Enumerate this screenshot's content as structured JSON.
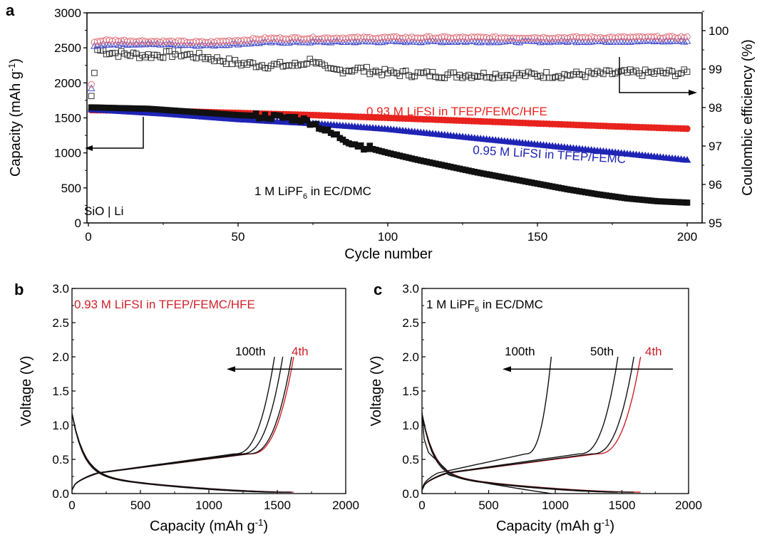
{
  "chart_data": [
    {
      "panel": "a",
      "type": "scatter",
      "xlabel": "Cycle number",
      "ylabel": "Capacity (mAh g-1)",
      "ylabel_right": "Coulombic efficiency (%)",
      "xlim": [
        -5,
        208
      ],
      "ylim": [
        0,
        3000
      ],
      "ylim_right": [
        95,
        100.5
      ],
      "xticks": [
        "0",
        "50",
        "100",
        "150",
        "200"
      ],
      "yticks": [
        "0",
        "500",
        "1000",
        "1500",
        "2000",
        "2500",
        "3000"
      ],
      "yticks_right": [
        "95",
        "96",
        "97",
        "98",
        "99",
        "100"
      ],
      "annotation_cell": "SiO | Li",
      "series_capacity": [
        {
          "name": "0.93 M LiFSI in TFEP/FEMC/HFE",
          "color": "#e8231e",
          "marker": "circle-filled",
          "x": [
            1,
            25,
            50,
            75,
            100,
            125,
            150,
            175,
            200
          ],
          "y": [
            1610,
            1600,
            1570,
            1540,
            1500,
            1460,
            1420,
            1380,
            1345
          ]
        },
        {
          "name": "0.95 M LiFSI in TFEP/FEMC",
          "color": "#1f24b5",
          "marker": "triangle-filled",
          "x": [
            1,
            25,
            50,
            75,
            100,
            125,
            150,
            175,
            200
          ],
          "y": [
            1620,
            1560,
            1480,
            1420,
            1340,
            1230,
            1120,
            1010,
            900
          ]
        },
        {
          "name": "1 M LiPF6 in EC/DMC",
          "color": "#111111",
          "marker": "square-filled",
          "x": [
            1,
            10,
            20,
            30,
            40,
            50,
            60,
            70,
            75,
            80,
            90,
            100,
            110,
            120,
            130,
            140,
            150,
            160,
            170,
            180,
            190,
            200
          ],
          "y": [
            1650,
            1640,
            1630,
            1600,
            1570,
            1540,
            1520,
            1490,
            1430,
            1300,
            1110,
            1000,
            900,
            810,
            720,
            640,
            560,
            480,
            410,
            350,
            310,
            290
          ]
        }
      ],
      "series_ce": [
        {
          "name": "0.93 M LiFSI in TFEP/FEMC/HFE",
          "color": "#e0707a",
          "marker": "circle-open",
          "x": [
            1,
            2,
            5,
            25,
            40,
            60,
            100,
            150,
            200
          ],
          "y": [
            98.6,
            99.7,
            99.75,
            99.72,
            99.7,
            99.8,
            99.82,
            99.82,
            99.83
          ]
        },
        {
          "name": "0.95 M LiFSI in TFEP/FEMC",
          "color": "#4a50c8",
          "marker": "triangle-open",
          "x": [
            1,
            2,
            5,
            25,
            40,
            60,
            100,
            150,
            200
          ],
          "y": [
            98.5,
            99.6,
            99.65,
            99.65,
            99.62,
            99.7,
            99.72,
            99.72,
            99.73
          ]
        },
        {
          "name": "1 M LiPF6 in EC/DMC",
          "color": "#333333",
          "marker": "square-open",
          "x": [
            1,
            3,
            10,
            20,
            30,
            40,
            50,
            60,
            70,
            75,
            80,
            90,
            100,
            120,
            140,
            160,
            180,
            200
          ],
          "y": [
            98.3,
            99.5,
            99.4,
            99.35,
            99.4,
            99.3,
            99.15,
            99.1,
            99.1,
            99.25,
            98.95,
            99.0,
            98.9,
            98.85,
            98.85,
            98.85,
            98.9,
            98.9
          ]
        }
      ],
      "labels": {
        "red": "0.93 M LiFSI in TFEP/FEMC/HFE",
        "blue": "0.95 M LiFSI in TFEP/FEMC",
        "black_pre": "1 M LiPF",
        "black_sub": "6",
        "black_post": " in EC/DMC"
      }
    },
    {
      "panel": "b",
      "type": "line",
      "xlabel": "Capacity (mAh g-1)",
      "ylabel": "Voltage (V)",
      "xlim": [
        0,
        2000
      ],
      "ylim": [
        0,
        3.0
      ],
      "xticks": [
        "0",
        "500",
        "1000",
        "1500",
        "2000"
      ],
      "yticks": [
        "0.0",
        "0.5",
        "1.0",
        "1.5",
        "2.0",
        "2.5",
        "3.0"
      ],
      "title_annotation": "0.93 M LiFSI in TFEP/FEMC/HFE",
      "cycle_labels": {
        "first": "4th",
        "last": "100th"
      },
      "curves": [
        {
          "cycle": "4th",
          "color": "#d0202a",
          "max_capacity": 1620
        },
        {
          "cycle": "intermediate",
          "color": "#111111",
          "max_capacity": 1605
        },
        {
          "cycle": "intermediate",
          "color": "#111111",
          "max_capacity": 1540
        },
        {
          "cycle": "100th",
          "color": "#111111",
          "max_capacity": 1480
        }
      ]
    },
    {
      "panel": "c",
      "type": "line",
      "xlabel": "Capacity (mAh g-1)",
      "ylabel": "Voltage (V)",
      "xlim": [
        0,
        2000
      ],
      "ylim": [
        0,
        3.0
      ],
      "xticks": [
        "0",
        "500",
        "1000",
        "1500",
        "2000"
      ],
      "yticks": [
        "0.0",
        "0.5",
        "1.0",
        "1.5",
        "2.0",
        "2.5",
        "3.0"
      ],
      "title_pre": "1 M LiPF",
      "title_sub": "6",
      "title_post": " in EC/DMC",
      "cycle_labels": {
        "first": "4th",
        "mid": "50th",
        "last": "100th"
      },
      "curves": [
        {
          "cycle": "4th",
          "color": "#d0202a",
          "max_capacity": 1640
        },
        {
          "cycle": "intermediate",
          "color": "#111111",
          "max_capacity": 1590
        },
        {
          "cycle": "50th",
          "color": "#111111",
          "max_capacity": 1470
        },
        {
          "cycle": "100th",
          "color": "#111111",
          "max_capacity": 970
        }
      ]
    }
  ],
  "panel_letters": {
    "a": "a",
    "b": "b",
    "c": "c"
  }
}
